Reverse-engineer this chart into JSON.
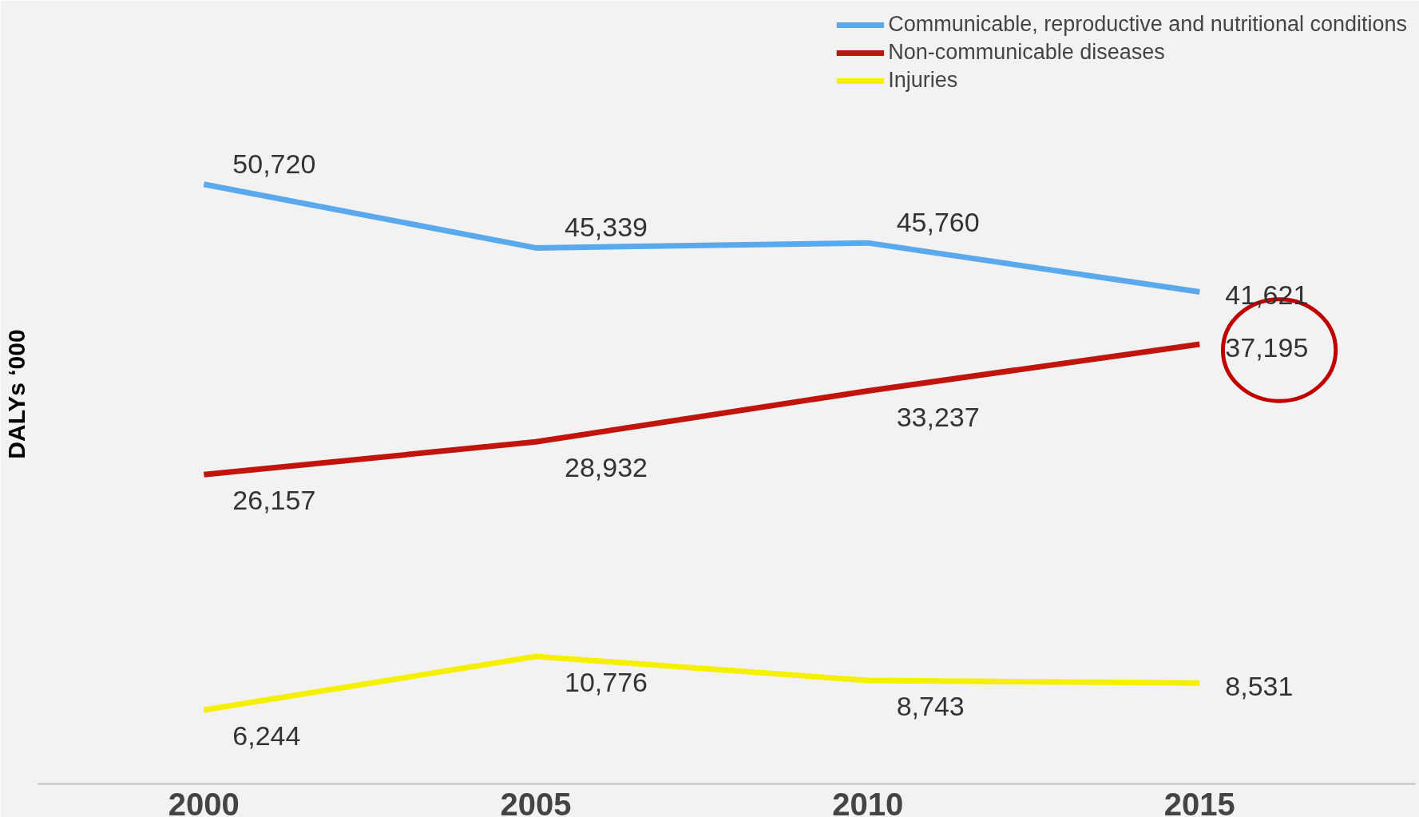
{
  "chart_data": {
    "type": "line",
    "ylabel": "DALYs ‘000",
    "categories": [
      "2000",
      "2005",
      "2010",
      "2015"
    ],
    "series": [
      {
        "name": "Communicable, reproductive and nutritional conditions",
        "color": "#5aa9ec",
        "values": [
          50720,
          45339,
          45760,
          41621
        ],
        "value_labels": [
          "50,720",
          "45,339",
          "45,760",
          "41,621"
        ]
      },
      {
        "name": "Non-communicable diseases",
        "color": "#c0140c",
        "values": [
          26157,
          28932,
          33237,
          37195
        ],
        "value_labels": [
          "26,157",
          "28,932",
          "33,237",
          "37,195"
        ]
      },
      {
        "name": "Injuries",
        "color": "#f5f000",
        "values": [
          6244,
          10776,
          8743,
          8531
        ],
        "value_labels": [
          "6,244",
          "10,776",
          "8,743",
          "8,531"
        ]
      }
    ],
    "legend": "top right",
    "grid": false,
    "marker": "none",
    "line_style": "solid"
  }
}
